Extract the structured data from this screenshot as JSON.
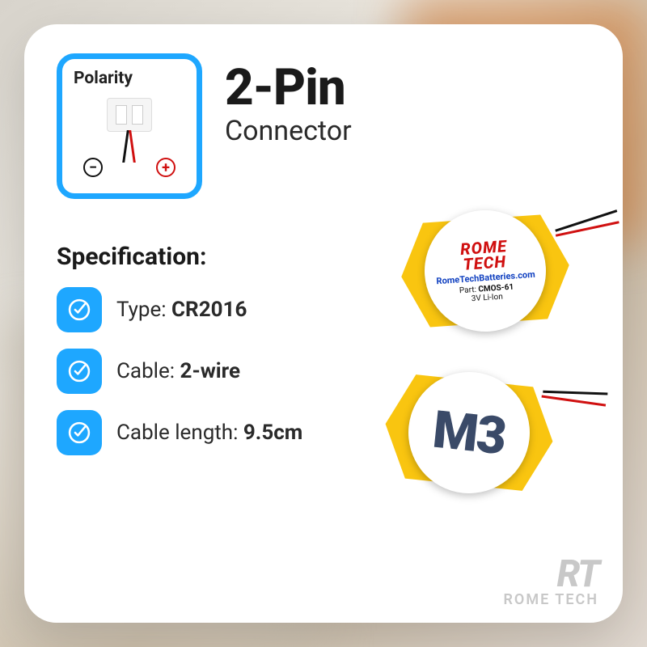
{
  "polarity": {
    "title": "Polarity",
    "minus": "−",
    "plus": "+"
  },
  "header": {
    "title": "2-Pin",
    "subtitle": "Connector"
  },
  "spec": {
    "title": "Specification:",
    "rows": [
      {
        "label": "Type:",
        "value": "CR2016"
      },
      {
        "label": "Cable:",
        "value": "2-wire"
      },
      {
        "label": "Cable length:",
        "value": "9.5cm"
      }
    ]
  },
  "battery_top": {
    "brand_line1": "ROME",
    "brand_line2": "TECH",
    "url": "RomeTechBatteries.com",
    "part_label": "Part:",
    "part_value": "CMOS-61",
    "voltage": "3V Li-Ion"
  },
  "battery_bottom": {
    "label": "M3"
  },
  "watermark": {
    "logo": "RT",
    "text": "ROME TECH"
  },
  "colors": {
    "accent": "#1ea7ff",
    "wrap_yellow": "#f9c510",
    "brand_red": "#d01010",
    "brand_blue": "#1040c0",
    "m3_color": "#3a4a68",
    "wire_black": "#111111",
    "wire_red": "#d01010",
    "card_bg": "#ffffff"
  }
}
